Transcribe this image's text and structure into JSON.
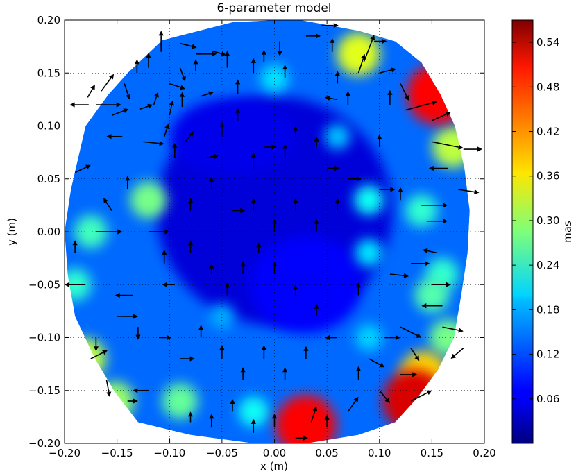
{
  "chart_data": {
    "type": "heatmap",
    "title": "6-parameter model",
    "xlabel": "x  (m)",
    "ylabel": "y  (m)",
    "xlim": [
      -0.2,
      0.2
    ],
    "ylim": [
      -0.2,
      0.2
    ],
    "x_ticks": [
      "−0.20",
      "−0.15",
      "−0.10",
      "−0.05",
      "0.00",
      "0.05",
      "0.10",
      "0.15",
      "0.20"
    ],
    "y_ticks": [
      "−0.20",
      "−0.15",
      "−0.10",
      "−0.05",
      "0.00",
      "0.05",
      "0.10",
      "0.15",
      "0.20"
    ],
    "grid": true,
    "colorbar": {
      "label": "mas",
      "range": [
        0.0,
        0.57
      ],
      "ticks": [
        "0.06",
        "0.12",
        "0.18",
        "0.24",
        "0.30",
        "0.36",
        "0.42",
        "0.48",
        "0.54"
      ],
      "colormap": "jet"
    },
    "field_boundary": [
      [
        -0.107,
        0.181
      ],
      [
        -0.04,
        0.198
      ],
      [
        0.02,
        0.201
      ],
      [
        0.08,
        0.19
      ],
      [
        0.115,
        0.18
      ],
      [
        0.14,
        0.16
      ],
      [
        0.158,
        0.13
      ],
      [
        0.172,
        0.1
      ],
      [
        0.181,
        0.06
      ],
      [
        0.186,
        0.02
      ],
      [
        0.184,
        -0.02
      ],
      [
        0.178,
        -0.06
      ],
      [
        0.171,
        -0.1
      ],
      [
        0.156,
        -0.13
      ],
      [
        0.136,
        -0.157
      ],
      [
        0.115,
        -0.18
      ],
      [
        0.08,
        -0.192
      ],
      [
        0.03,
        -0.2
      ],
      [
        -0.02,
        -0.2
      ],
      [
        -0.08,
        -0.192
      ],
      [
        -0.13,
        -0.18
      ],
      [
        -0.153,
        -0.15
      ],
      [
        -0.171,
        -0.12
      ],
      [
        -0.19,
        -0.08
      ],
      [
        -0.197,
        -0.04
      ],
      [
        -0.2,
        0.0
      ],
      [
        -0.194,
        0.04
      ],
      [
        -0.18,
        0.1
      ],
      [
        -0.158,
        0.13
      ],
      [
        -0.14,
        0.15
      ]
    ],
    "hotspots": [
      {
        "x": 0.155,
        "y": 0.13,
        "value": 0.5
      },
      {
        "x": 0.133,
        "y": -0.16,
        "value": 0.52
      },
      {
        "x": 0.03,
        "y": -0.183,
        "value": 0.5
      },
      {
        "x": 0.142,
        "y": -0.135,
        "value": 0.38
      },
      {
        "x": 0.08,
        "y": 0.168,
        "value": 0.34
      },
      {
        "x": -0.18,
        "y": -0.12,
        "value": 0.32
      },
      {
        "x": -0.152,
        "y": -0.16,
        "value": 0.3
      },
      {
        "x": -0.12,
        "y": 0.03,
        "value": 0.28
      },
      {
        "x": -0.175,
        "y": 0.0,
        "value": 0.25
      },
      {
        "x": 0.17,
        "y": 0.08,
        "value": 0.32
      },
      {
        "x": 0.14,
        "y": 0.02,
        "value": 0.24
      },
      {
        "x": 0.09,
        "y": 0.03,
        "value": 0.22
      },
      {
        "x": 0.09,
        "y": -0.02,
        "value": 0.2
      },
      {
        "x": 0.15,
        "y": -0.06,
        "value": 0.26
      },
      {
        "x": 0.16,
        "y": -0.04,
        "value": 0.24
      },
      {
        "x": -0.02,
        "y": -0.17,
        "value": 0.22
      },
      {
        "x": -0.09,
        "y": -0.16,
        "value": 0.27
      },
      {
        "x": 0.0,
        "y": 0.145,
        "value": 0.2
      },
      {
        "x": 0.06,
        "y": 0.09,
        "value": 0.18
      },
      {
        "x": -0.05,
        "y": -0.08,
        "value": 0.17
      },
      {
        "x": 0.09,
        "y": -0.1,
        "value": 0.19
      },
      {
        "x": -0.19,
        "y": -0.05,
        "value": 0.24
      },
      {
        "x": 0.165,
        "y": -0.1,
        "value": 0.28
      }
    ],
    "vectors": [
      [
        -0.19,
        0.056,
        0.015,
        0.007
      ],
      [
        -0.177,
        0.12,
        -0.018,
        0.0
      ],
      [
        -0.17,
        0.12,
        0.024,
        0.0
      ],
      [
        -0.165,
        0.133,
        0.012,
        0.016
      ],
      [
        -0.178,
        0.127,
        0.007,
        0.012
      ],
      [
        -0.155,
        0.11,
        0.016,
        0.006
      ],
      [
        -0.143,
        0.14,
        0.005,
        -0.015
      ],
      [
        -0.131,
        0.15,
        0.0,
        0.013
      ],
      [
        -0.12,
        0.155,
        0.0,
        0.014
      ],
      [
        -0.108,
        0.17,
        0.0,
        0.02
      ],
      [
        -0.09,
        0.178,
        0.016,
        -0.004
      ],
      [
        -0.075,
        0.168,
        0.02,
        0.0
      ],
      [
        -0.06,
        0.171,
        0.014,
        -0.004
      ],
      [
        -0.09,
        0.155,
        0.005,
        -0.013
      ],
      [
        -0.075,
        0.152,
        0.0,
        0.011
      ],
      [
        -0.1,
        0.14,
        0.015,
        -0.005
      ],
      [
        -0.115,
        0.12,
        0.004,
        0.012
      ],
      [
        -0.128,
        0.116,
        0.012,
        0.004
      ],
      [
        -0.1,
        0.11,
        0.003,
        0.014
      ],
      [
        -0.088,
        0.118,
        0.0,
        0.014
      ],
      [
        -0.07,
        0.128,
        0.012,
        0.004
      ],
      [
        -0.045,
        0.155,
        0.0,
        0.016
      ],
      [
        -0.035,
        0.13,
        0.0,
        0.014
      ],
      [
        -0.02,
        0.15,
        0.0,
        0.014
      ],
      [
        -0.01,
        0.16,
        0.0,
        0.012
      ],
      [
        0.005,
        0.18,
        0.0,
        -0.014
      ],
      [
        0.01,
        0.145,
        0.0,
        0.013
      ],
      [
        0.03,
        0.185,
        0.014,
        0.0
      ],
      [
        0.045,
        0.195,
        0.016,
        0.0
      ],
      [
        0.055,
        0.17,
        0.0,
        0.013
      ],
      [
        0.06,
        0.14,
        0.0,
        0.012
      ],
      [
        0.07,
        0.12,
        0.0,
        0.013
      ],
      [
        0.06,
        0.125,
        -0.012,
        0.002
      ],
      [
        0.08,
        0.15,
        0.006,
        0.018
      ],
      [
        0.085,
        0.16,
        0.01,
        0.026
      ],
      [
        0.095,
        0.18,
        0.012,
        0.0
      ],
      [
        0.1,
        0.15,
        0.016,
        0.004
      ],
      [
        0.11,
        0.12,
        0.0,
        0.014
      ],
      [
        0.12,
        0.14,
        0.008,
        -0.016
      ],
      [
        0.125,
        0.115,
        0.03,
        0.008
      ],
      [
        0.15,
        0.105,
        0.018,
        0.008
      ],
      [
        0.15,
        0.085,
        0.03,
        -0.006
      ],
      [
        0.18,
        0.078,
        0.018,
        0.0
      ],
      [
        0.165,
        0.06,
        -0.018,
        0.0
      ],
      [
        0.175,
        0.04,
        0.02,
        -0.003
      ],
      [
        -0.145,
        0.09,
        -0.015,
        0.0
      ],
      [
        -0.125,
        0.085,
        0.02,
        -0.002
      ],
      [
        -0.105,
        0.09,
        0.004,
        0.012
      ],
      [
        -0.095,
        0.07,
        0.0,
        0.014
      ],
      [
        -0.085,
        0.085,
        0.008,
        0.01
      ],
      [
        -0.065,
        0.07,
        0.012,
        0.002
      ],
      [
        -0.05,
        0.09,
        0.0,
        0.014
      ],
      [
        -0.035,
        0.105,
        0.0,
        0.012
      ],
      [
        -0.02,
        0.06,
        0.0,
        0.015
      ],
      [
        -0.01,
        0.08,
        0.012,
        0.0
      ],
      [
        0.01,
        0.07,
        0.0,
        0.013
      ],
      [
        0.02,
        0.09,
        0.0,
        0.01
      ],
      [
        0.04,
        0.08,
        0.0,
        0.01
      ],
      [
        0.05,
        0.06,
        0.012,
        0.0
      ],
      [
        0.07,
        0.05,
        0.013,
        0.0
      ],
      [
        0.1,
        0.04,
        0.015,
        0.0
      ],
      [
        0.12,
        0.03,
        0.0,
        0.012
      ],
      [
        0.14,
        0.025,
        0.025,
        0.0
      ],
      [
        0.145,
        0.01,
        0.02,
        0.0
      ],
      [
        0.155,
        -0.02,
        -0.014,
        0.003
      ],
      [
        0.13,
        -0.03,
        0.018,
        0.0
      ],
      [
        0.11,
        -0.04,
        0.018,
        -0.002
      ],
      [
        0.15,
        -0.05,
        0.018,
        0.0
      ],
      [
        0.16,
        -0.07,
        -0.02,
        0.0
      ],
      [
        0.16,
        -0.09,
        0.02,
        -0.004
      ],
      [
        0.18,
        -0.11,
        -0.012,
        -0.01
      ],
      [
        0.12,
        -0.09,
        0.02,
        -0.01
      ],
      [
        0.13,
        -0.11,
        0.008,
        -0.012
      ],
      [
        0.105,
        -0.1,
        0.015,
        0.0
      ],
      [
        0.09,
        -0.12,
        0.015,
        -0.008
      ],
      [
        0.08,
        -0.14,
        0.0,
        0.013
      ],
      [
        0.12,
        -0.135,
        0.016,
        0.0
      ],
      [
        0.1,
        -0.15,
        0.01,
        -0.012
      ],
      [
        0.13,
        -0.16,
        0.02,
        0.01
      ],
      [
        0.07,
        -0.17,
        0.01,
        0.014
      ],
      [
        0.05,
        -0.185,
        0.0,
        0.012
      ],
      [
        0.035,
        -0.18,
        0.005,
        0.015
      ],
      [
        0.02,
        -0.195,
        0.012,
        0.0
      ],
      [
        0.0,
        -0.185,
        0.0,
        0.013
      ],
      [
        -0.02,
        -0.19,
        0.0,
        0.013
      ],
      [
        -0.04,
        -0.17,
        0.0,
        0.012
      ],
      [
        -0.06,
        -0.185,
        0.0,
        0.013
      ],
      [
        -0.08,
        -0.18,
        0.0,
        0.01
      ],
      [
        -0.1,
        -0.195,
        0.0,
        -0.013
      ],
      [
        -0.12,
        -0.15,
        -0.015,
        0.0
      ],
      [
        -0.14,
        -0.16,
        0.01,
        0.0
      ],
      [
        -0.16,
        -0.14,
        0.003,
        -0.016
      ],
      [
        -0.175,
        -0.12,
        0.016,
        0.008
      ],
      [
        -0.17,
        -0.1,
        0.0,
        -0.013
      ],
      [
        -0.15,
        -0.08,
        0.02,
        0.0
      ],
      [
        -0.135,
        -0.06,
        -0.017,
        0.0
      ],
      [
        -0.18,
        -0.05,
        -0.02,
        0.0
      ],
      [
        -0.19,
        -0.02,
        0.0,
        0.012
      ],
      [
        -0.17,
        0.0,
        0.025,
        0.0
      ],
      [
        -0.155,
        0.02,
        -0.008,
        0.012
      ],
      [
        -0.14,
        0.04,
        0.0,
        0.013
      ],
      [
        -0.12,
        0.0,
        0.02,
        0.0
      ],
      [
        -0.105,
        -0.03,
        0.0,
        0.013
      ],
      [
        -0.095,
        -0.05,
        -0.012,
        0.0
      ],
      [
        -0.08,
        -0.02,
        0.0,
        0.012
      ],
      [
        -0.06,
        -0.04,
        0.0,
        0.01
      ],
      [
        -0.045,
        -0.06,
        0.0,
        0.012
      ],
      [
        -0.03,
        -0.04,
        0.0,
        0.012
      ],
      [
        -0.015,
        -0.02,
        0.0,
        0.01
      ],
      [
        0.0,
        -0.04,
        0.0,
        0.012
      ],
      [
        0.02,
        -0.06,
        0.0,
        0.01
      ],
      [
        0.04,
        -0.08,
        0.0,
        0.012
      ],
      [
        0.06,
        -0.1,
        -0.012,
        0.0
      ],
      [
        0.03,
        -0.12,
        0.0,
        0.012
      ],
      [
        0.01,
        -0.14,
        0.0,
        0.012
      ],
      [
        -0.01,
        -0.12,
        0.0,
        0.013
      ],
      [
        -0.03,
        -0.14,
        0.0,
        0.012
      ],
      [
        -0.05,
        -0.12,
        0.0,
        0.013
      ],
      [
        -0.07,
        -0.1,
        0.0,
        0.012
      ],
      [
        -0.09,
        -0.12,
        0.014,
        0.0
      ],
      [
        -0.11,
        -0.1,
        0.012,
        0.0
      ],
      [
        -0.13,
        -0.09,
        0.0,
        -0.012
      ],
      [
        0.0,
        0.0,
        0.0,
        0.012
      ],
      [
        0.02,
        0.02,
        0.0,
        0.012
      ],
      [
        -0.02,
        0.02,
        0.0,
        0.012
      ],
      [
        0.04,
        0.0,
        0.0,
        0.012
      ],
      [
        0.06,
        0.02,
        0.0,
        0.012
      ],
      [
        0.08,
        -0.06,
        0.0,
        0.012
      ],
      [
        -0.06,
        0.04,
        0.0,
        0.012
      ],
      [
        -0.04,
        0.02,
        0.012,
        0.0
      ],
      [
        -0.08,
        0.02,
        0.0,
        0.012
      ],
      [
        0.1,
        0.08,
        0.0,
        0.012
      ]
    ]
  }
}
